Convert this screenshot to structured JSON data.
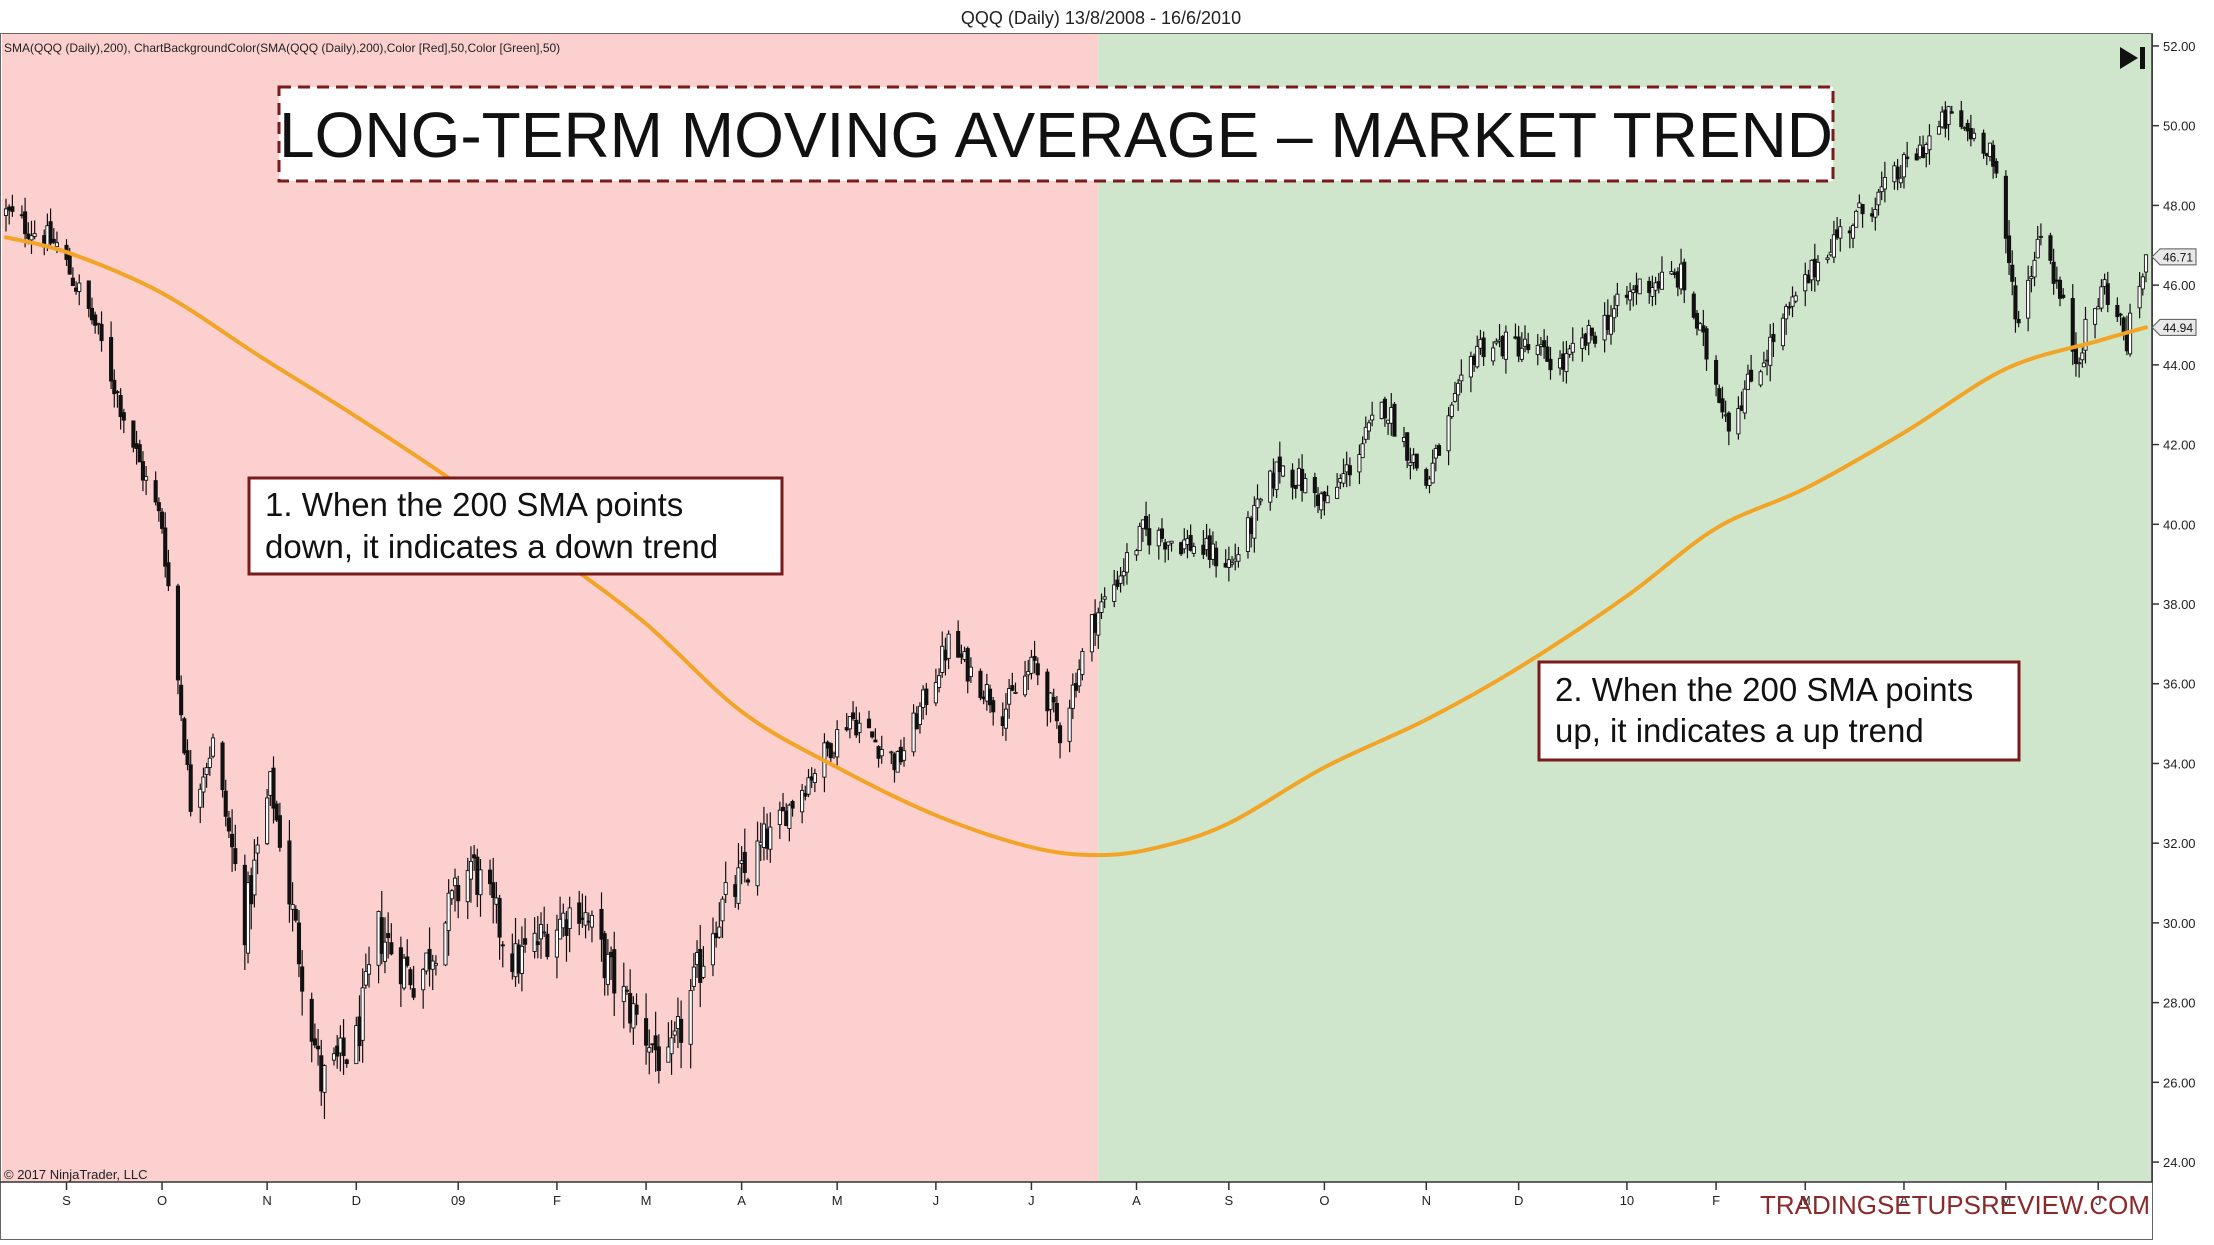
{
  "header": {
    "title": "QQQ (Daily)  13/8/2008 - 16/6/2010",
    "indicator_label": "SMA(QQQ (Daily),200), ChartBackgroundColor(SMA(QQQ (Daily),200),Color [Red],50,Color [Green],50)"
  },
  "footer": {
    "copyright": "© 2017 NinjaTrader, LLC",
    "watermark": "TRADINGSETUPSREVIEW.COM"
  },
  "annotations": {
    "banner": "LONG-TERM MOVING AVERAGE – MARKET TREND",
    "note1_line1": "1. When the 200 SMA points",
    "note1_line2": "down, it indicates a down trend",
    "note2_line1": "2. When the 200 SMA points",
    "note2_line2": "up, it indicates a up trend"
  },
  "colors": {
    "downtrend_bg": "#fdd0d0",
    "uptrend_bg": "#d0e6cc",
    "sma_line": "#f2a427",
    "candle": "#111111",
    "box_border": "#7a1a1a",
    "axis": "#444444"
  },
  "chart_data": {
    "type": "candlestick",
    "instrument": "QQQ",
    "interval": "Daily",
    "x_ticks": [
      {
        "label": "S",
        "date": "2008-09-01"
      },
      {
        "label": "O",
        "date": "2008-10-01"
      },
      {
        "label": "N",
        "date": "2008-11-03"
      },
      {
        "label": "D",
        "date": "2008-12-01"
      },
      {
        "label": "09",
        "date": "2009-01-02"
      },
      {
        "label": "F",
        "date": "2009-02-02"
      },
      {
        "label": "M",
        "date": "2009-03-02"
      },
      {
        "label": "A",
        "date": "2009-04-01"
      },
      {
        "label": "M",
        "date": "2009-05-01"
      },
      {
        "label": "J",
        "date": "2009-06-01"
      },
      {
        "label": "J",
        "date": "2009-07-01"
      },
      {
        "label": "A",
        "date": "2009-08-03"
      },
      {
        "label": "S",
        "date": "2009-09-01"
      },
      {
        "label": "O",
        "date": "2009-10-01"
      },
      {
        "label": "N",
        "date": "2009-11-02"
      },
      {
        "label": "D",
        "date": "2009-12-01"
      },
      {
        "label": "10",
        "date": "2010-01-04"
      },
      {
        "label": "F",
        "date": "2010-02-01"
      },
      {
        "label": "M",
        "date": "2010-03-01"
      },
      {
        "label": "A",
        "date": "2010-04-01"
      },
      {
        "label": "M",
        "date": "2010-05-03"
      },
      {
        "label": "J",
        "date": "2010-06-01"
      }
    ],
    "y_ticks": [
      "24.00",
      "26.00",
      "28.00",
      "30.00",
      "32.00",
      "34.00",
      "36.00",
      "38.00",
      "40.00",
      "42.00",
      "44.00",
      "46.00",
      "48.00",
      "50.00",
      "52.00"
    ],
    "ylim": [
      23.5,
      52.3
    ],
    "xlim": [
      "2008-08-13",
      "2010-06-16"
    ],
    "price_markers": [
      {
        "label": "46.71",
        "value": 46.71,
        "series": "close"
      },
      {
        "label": "44.94",
        "value": 44.94,
        "series": "sma"
      }
    ],
    "trend_regions": [
      {
        "name": "downtrend",
        "start": "2008-08-13",
        "end": "2009-07-22"
      },
      {
        "name": "uptrend",
        "start": "2009-07-22",
        "end": "2010-06-16"
      }
    ],
    "close_path": [
      {
        "date": "2008-08-13",
        "close": 47.8
      },
      {
        "date": "2008-08-29",
        "close": 47.0
      },
      {
        "date": "2008-09-10",
        "close": 45.0
      },
      {
        "date": "2008-09-24",
        "close": 41.5
      },
      {
        "date": "2008-10-01",
        "close": 40.0
      },
      {
        "date": "2008-10-10",
        "close": 33.0
      },
      {
        "date": "2008-10-17",
        "close": 34.5
      },
      {
        "date": "2008-10-27",
        "close": 30.0
      },
      {
        "date": "2008-11-04",
        "close": 33.5
      },
      {
        "date": "2008-11-20",
        "close": 26.0
      },
      {
        "date": "2008-12-01",
        "close": 27.0
      },
      {
        "date": "2008-12-08",
        "close": 29.8
      },
      {
        "date": "2008-12-20",
        "close": 28.5
      },
      {
        "date": "2009-01-06",
        "close": 31.5
      },
      {
        "date": "2009-01-20",
        "close": 29.0
      },
      {
        "date": "2009-02-09",
        "close": 30.5
      },
      {
        "date": "2009-02-20",
        "close": 28.5
      },
      {
        "date": "2009-03-09",
        "close": 26.3
      },
      {
        "date": "2009-03-23",
        "close": 30.0
      },
      {
        "date": "2009-04-15",
        "close": 32.8
      },
      {
        "date": "2009-05-05",
        "close": 35.2
      },
      {
        "date": "2009-05-20",
        "close": 34.0
      },
      {
        "date": "2009-06-05",
        "close": 37.0
      },
      {
        "date": "2009-06-22",
        "close": 35.3
      },
      {
        "date": "2009-07-02",
        "close": 36.5
      },
      {
        "date": "2009-07-10",
        "close": 34.8
      },
      {
        "date": "2009-07-20",
        "close": 37.5
      },
      {
        "date": "2009-08-05",
        "close": 39.8
      },
      {
        "date": "2009-08-20",
        "close": 39.5
      },
      {
        "date": "2009-09-02",
        "close": 39.0
      },
      {
        "date": "2009-09-17",
        "close": 41.5
      },
      {
        "date": "2009-10-02",
        "close": 40.5
      },
      {
        "date": "2009-10-20",
        "close": 43.0
      },
      {
        "date": "2009-11-02",
        "close": 41.0
      },
      {
        "date": "2009-11-18",
        "close": 44.5
      },
      {
        "date": "2009-12-01",
        "close": 44.5
      },
      {
        "date": "2009-12-15",
        "close": 44.0
      },
      {
        "date": "2010-01-08",
        "close": 46.0
      },
      {
        "date": "2010-01-21",
        "close": 46.2
      },
      {
        "date": "2010-02-05",
        "close": 42.6
      },
      {
        "date": "2010-02-18",
        "close": 44.5
      },
      {
        "date": "2010-03-08",
        "close": 47.0
      },
      {
        "date": "2010-03-25",
        "close": 48.3
      },
      {
        "date": "2010-04-15",
        "close": 50.2
      },
      {
        "date": "2010-04-28",
        "close": 49.5
      },
      {
        "date": "2010-05-07",
        "close": 45.0
      },
      {
        "date": "2010-05-14",
        "close": 47.5
      },
      {
        "date": "2010-05-25",
        "close": 44.2
      },
      {
        "date": "2010-06-03",
        "close": 46.0
      },
      {
        "date": "2010-06-10",
        "close": 44.6
      },
      {
        "date": "2010-06-16",
        "close": 46.71
      }
    ],
    "sma_200": [
      {
        "date": "2008-08-13",
        "value": 47.2
      },
      {
        "date": "2008-09-02",
        "value": 46.8
      },
      {
        "date": "2008-10-01",
        "value": 45.8
      },
      {
        "date": "2008-11-01",
        "value": 44.2
      },
      {
        "date": "2008-12-01",
        "value": 42.7
      },
      {
        "date": "2009-01-02",
        "value": 41.0
      },
      {
        "date": "2009-02-02",
        "value": 39.2
      },
      {
        "date": "2009-03-02",
        "value": 37.5
      },
      {
        "date": "2009-04-01",
        "value": 35.3
      },
      {
        "date": "2009-05-01",
        "value": 33.9
      },
      {
        "date": "2009-06-01",
        "value": 32.7
      },
      {
        "date": "2009-07-01",
        "value": 31.9
      },
      {
        "date": "2009-07-22",
        "value": 31.7
      },
      {
        "date": "2009-08-10",
        "value": 31.9
      },
      {
        "date": "2009-09-01",
        "value": 32.5
      },
      {
        "date": "2009-10-01",
        "value": 33.9
      },
      {
        "date": "2009-11-02",
        "value": 35.1
      },
      {
        "date": "2009-12-01",
        "value": 36.4
      },
      {
        "date": "2010-01-04",
        "value": 38.2
      },
      {
        "date": "2010-02-01",
        "value": 39.9
      },
      {
        "date": "2010-03-01",
        "value": 40.9
      },
      {
        "date": "2010-04-01",
        "value": 42.3
      },
      {
        "date": "2010-05-03",
        "value": 43.9
      },
      {
        "date": "2010-06-01",
        "value": 44.6
      },
      {
        "date": "2010-06-16",
        "value": 44.94
      }
    ]
  }
}
